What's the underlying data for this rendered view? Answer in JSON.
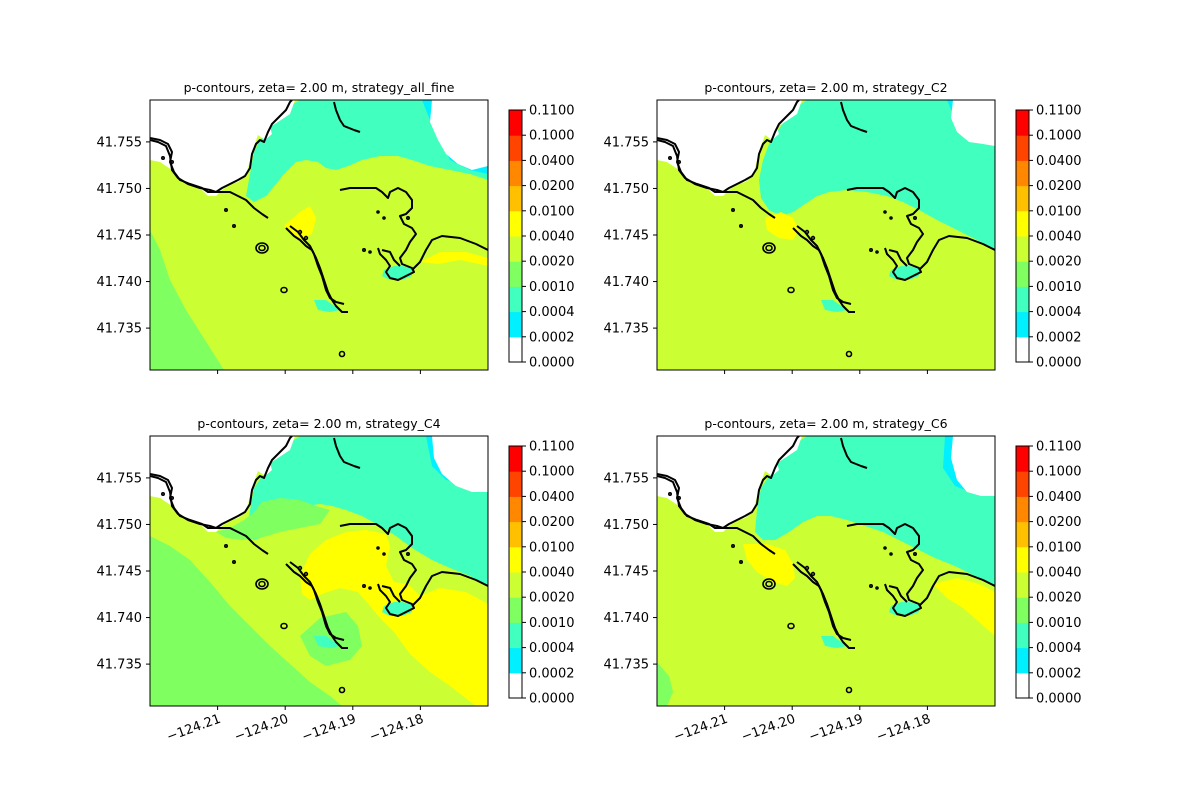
{
  "colorbar": {
    "levels": [
      0,
      0.0002,
      0.0004,
      0.001,
      0.002,
      0.004,
      0.01,
      0.02,
      0.04,
      0.1,
      0.11
    ],
    "tick_labels": [
      "0.0000",
      "0.0002",
      "0.0004",
      "0.0010",
      "0.0020",
      "0.0040",
      "0.0100",
      "0.0200",
      "0.0400",
      "0.1000",
      "0.1100"
    ],
    "colors": [
      "#ffffff",
      "#00f0ff",
      "#40ffbf",
      "#80ff60",
      "#ccff33",
      "#ffff00",
      "#ffc000",
      "#ff8800",
      "#ff4400",
      "#ff0000"
    ]
  },
  "land_color": "#ffffff",
  "coastline_color": "#000000",
  "chart_data": [
    {
      "type": "contour",
      "title": "p-contours, zeta= 2.00 m, strategy_all_fine",
      "xticks": [
        -124.21,
        -124.2,
        -124.19,
        -124.18
      ],
      "xtick_labels": [
        "−124.21",
        "−124.20",
        "−124.19",
        "−124.18"
      ],
      "show_xticks": false,
      "yticks": [
        41.735,
        41.74,
        41.745,
        41.75,
        41.755
      ],
      "ytick_labels": [
        "41.735",
        "41.740",
        "41.745",
        "41.750",
        "41.755"
      ],
      "xlim": [
        -124.22,
        -124.17
      ],
      "ylim": [
        41.7305,
        41.7595
      ]
    },
    {
      "type": "contour",
      "title": "p-contours, zeta= 2.00 m, strategy_C2",
      "xticks": [
        -124.21,
        -124.2,
        -124.19,
        -124.18
      ],
      "xtick_labels": [
        "−124.21",
        "−124.20",
        "−124.19",
        "−124.18"
      ],
      "show_xticks": false,
      "yticks": [
        41.735,
        41.74,
        41.745,
        41.75,
        41.755
      ],
      "ytick_labels": [
        "41.735",
        "41.740",
        "41.745",
        "41.750",
        "41.755"
      ],
      "xlim": [
        -124.22,
        -124.17
      ],
      "ylim": [
        41.7305,
        41.7595
      ]
    },
    {
      "type": "contour",
      "title": "p-contours, zeta= 2.00 m, strategy_C4",
      "xticks": [
        -124.21,
        -124.2,
        -124.19,
        -124.18
      ],
      "xtick_labels": [
        "−124.21",
        "−124.20",
        "−124.19",
        "−124.18"
      ],
      "show_xticks": true,
      "yticks": [
        41.735,
        41.74,
        41.745,
        41.75,
        41.755
      ],
      "ytick_labels": [
        "41.735",
        "41.740",
        "41.745",
        "41.750",
        "41.755"
      ],
      "xlim": [
        -124.22,
        -124.17
      ],
      "ylim": [
        41.7305,
        41.7595
      ]
    },
    {
      "type": "contour",
      "title": "p-contours, zeta= 2.00 m, strategy_C6",
      "xticks": [
        -124.21,
        -124.2,
        -124.19,
        -124.18
      ],
      "xtick_labels": [
        "−124.21",
        "−124.20",
        "−124.19",
        "−124.18"
      ],
      "show_xticks": true,
      "yticks": [
        41.735,
        41.74,
        41.745,
        41.75,
        41.755
      ],
      "ytick_labels": [
        "41.735",
        "41.740",
        "41.745",
        "41.750",
        "41.755"
      ],
      "xlim": [
        -124.22,
        -124.17
      ],
      "ylim": [
        41.7305,
        41.7595
      ]
    }
  ]
}
